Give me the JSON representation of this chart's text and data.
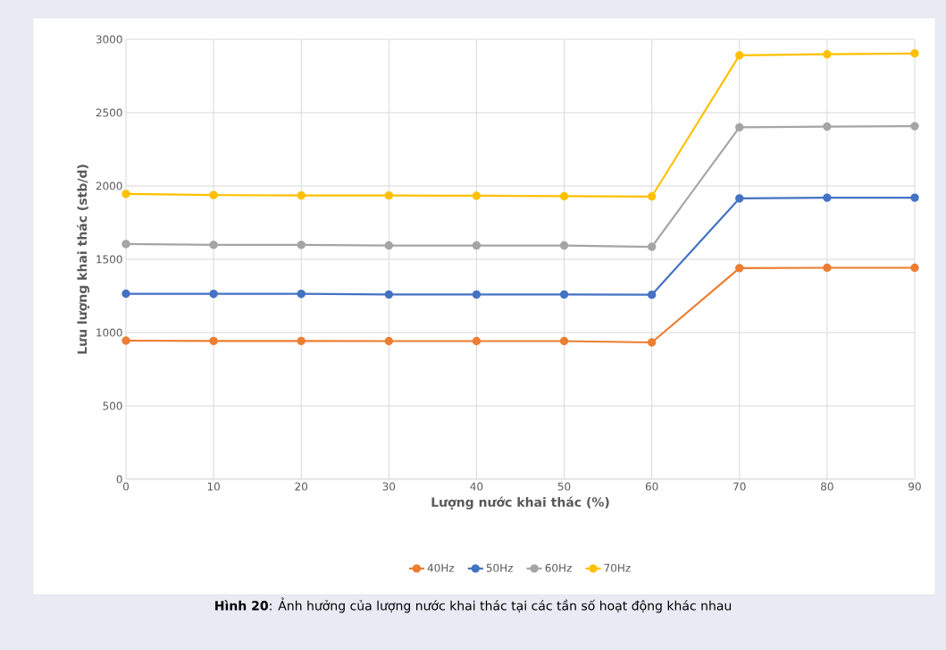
{
  "chart_data": {
    "type": "line",
    "xlabel": "Lượng nước khai thác (%)",
    "ylabel": "Lưu lượng khai thác (stb/d)",
    "x": [
      0,
      10,
      20,
      30,
      40,
      50,
      60,
      70,
      80,
      90
    ],
    "series": [
      {
        "name": "40Hz",
        "color": "#ed7d31",
        "values": [
          945,
          943,
          943,
          942,
          942,
          942,
          933,
          1440,
          1442,
          1442
        ]
      },
      {
        "name": "50Hz",
        "color": "#4472c4",
        "values": [
          1265,
          1264,
          1264,
          1260,
          1260,
          1260,
          1258,
          1915,
          1920,
          1920
        ]
      },
      {
        "name": "60Hz",
        "color": "#a5a5a5",
        "values": [
          1604,
          1598,
          1598,
          1594,
          1594,
          1594,
          1585,
          2400,
          2405,
          2408
        ]
      },
      {
        "name": "70Hz",
        "color": "#ffc000",
        "values": [
          1946,
          1938,
          1935,
          1935,
          1933,
          1930,
          1928,
          2891,
          2898,
          2904
        ]
      }
    ],
    "xlim": [
      0,
      90
    ],
    "ylim": [
      0,
      3000
    ],
    "xticks": [
      0,
      10,
      20,
      30,
      40,
      50,
      60,
      70,
      80,
      90
    ],
    "yticks": [
      0,
      500,
      1000,
      1500,
      2000,
      2500,
      3000
    ],
    "grid": true,
    "legend": "bottom",
    "marker": "circle",
    "line_style": "solid",
    "annotations": [
      "**Hình 20**: Ảnh hưởng của lượng nước khai thác tại các tần số hoạt động khác nhau"
    ]
  }
}
